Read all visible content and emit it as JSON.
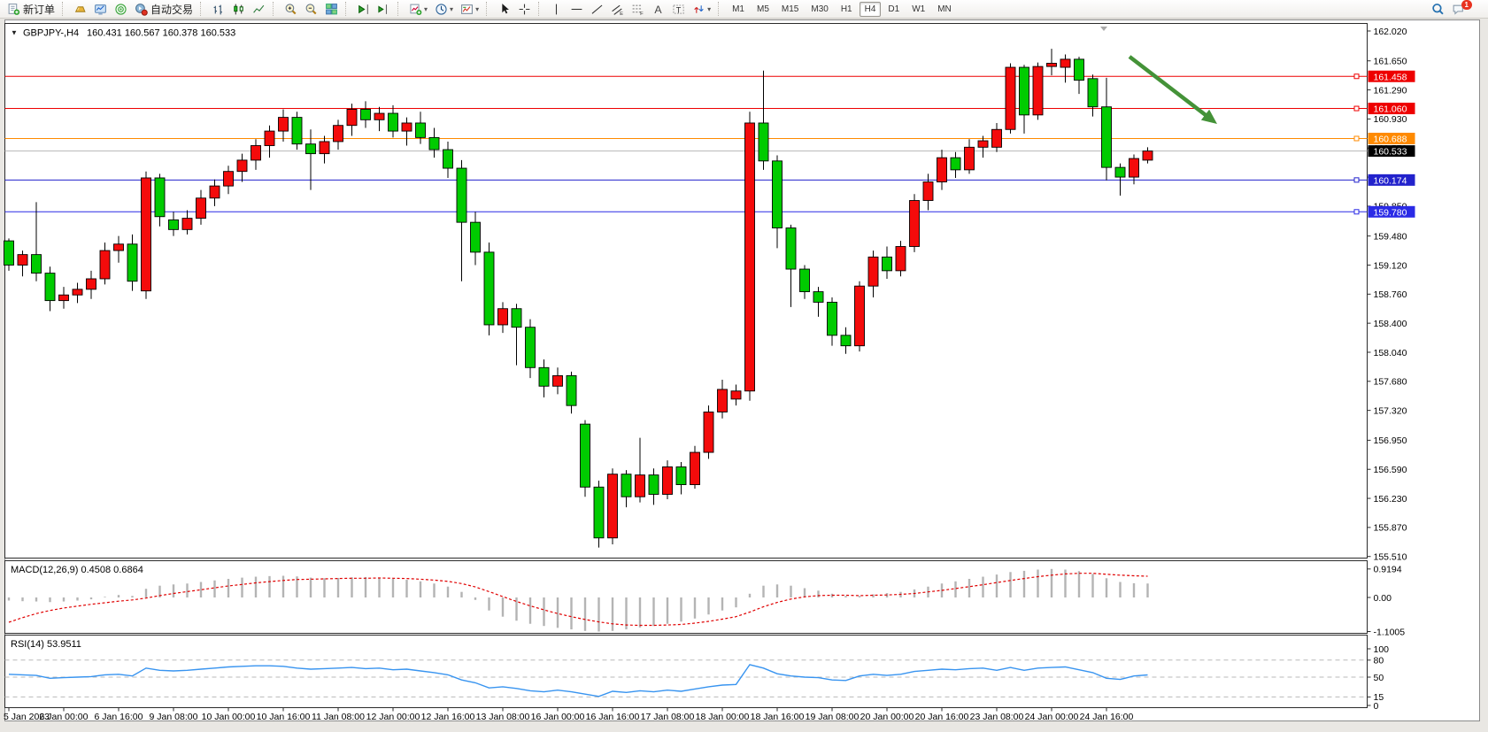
{
  "toolbar": {
    "groups": [
      {
        "items": [
          {
            "icon": "new-order-icon",
            "label": "新订单"
          }
        ]
      },
      {
        "items": [
          {
            "icon": "payment-icon"
          },
          {
            "icon": "terminal-icon"
          },
          {
            "icon": "signals-icon"
          },
          {
            "icon": "autotrade-icon",
            "label": "自动交易"
          }
        ]
      },
      {
        "items": [
          {
            "icon": "bar-chart-icon"
          },
          {
            "icon": "candlestick-chart-icon"
          },
          {
            "icon": "line-chart-icon"
          }
        ]
      },
      {
        "items": [
          {
            "icon": "zoom-in-icon"
          },
          {
            "icon": "zoom-out-icon"
          },
          {
            "icon": "tile-windows-icon"
          }
        ]
      },
      {
        "items": [
          {
            "icon": "auto-scroll-icon"
          },
          {
            "icon": "chart-shift-icon"
          }
        ]
      },
      {
        "items": [
          {
            "icon": "indicators-icon",
            "dropdown": true
          },
          {
            "icon": "periods-icon",
            "dropdown": true
          },
          {
            "icon": "templates-icon",
            "dropdown": true
          }
        ]
      },
      {
        "items": [
          {
            "icon": "cursor-icon"
          },
          {
            "icon": "crosshair-icon"
          }
        ]
      },
      {
        "items": [
          {
            "icon": "vertical-line-icon"
          },
          {
            "icon": "horizontal-line-icon"
          },
          {
            "icon": "trendline-icon"
          },
          {
            "icon": "equidistant-channel-icon"
          },
          {
            "icon": "fibonacci-icon"
          },
          {
            "icon": "text-icon"
          },
          {
            "icon": "text-label-icon"
          },
          {
            "icon": "arrows-icon",
            "dropdown": true
          }
        ]
      },
      {
        "type": "timeframes",
        "items": [
          {
            "label": "M1"
          },
          {
            "label": "M5"
          },
          {
            "label": "M15"
          },
          {
            "label": "M30"
          },
          {
            "label": "H1"
          },
          {
            "label": "H4",
            "active": true
          },
          {
            "label": "D1"
          },
          {
            "label": "W1"
          },
          {
            "label": "MN"
          }
        ]
      }
    ],
    "right": [
      {
        "icon": "search-icon"
      },
      {
        "icon": "chat-icon",
        "badge": "1"
      }
    ]
  },
  "chart": {
    "title_symbol": "GBPJPY-,H4",
    "title_ohlc": "160.431 160.567 160.378 160.533",
    "macd_label": "MACD(12,26,9) 0.4508 0.6864",
    "rsi_label": "RSI(14) 53.9511"
  },
  "chart_data": {
    "type": "candlestick",
    "symbol": "GBPJPY-",
    "period": "H4",
    "price_axis_ticks": [
      "162.020",
      "161.650",
      "161.290",
      "160.930",
      "160.570",
      "160.210",
      "159.850",
      "159.480",
      "159.120",
      "158.760",
      "158.400",
      "158.040",
      "157.680",
      "157.320",
      "156.950",
      "156.590",
      "156.230",
      "155.870",
      "155.510"
    ],
    "time_axis_ticks": [
      "5 Jan 2023",
      "6 Jan 00:00",
      "6 Jan 16:00",
      "9 Jan 08:00",
      "10 Jan 00:00",
      "10 Jan 16:00",
      "11 Jan 08:00",
      "12 Jan 00:00",
      "12 Jan 16:00",
      "13 Jan 08:00",
      "16 Jan 00:00",
      "16 Jan 16:00",
      "17 Jan 08:00",
      "18 Jan 00:00",
      "18 Jan 16:00",
      "19 Jan 08:00",
      "20 Jan 00:00",
      "20 Jan 16:00",
      "23 Jan 08:00",
      "24 Jan 00:00",
      "24 Jan 16:00"
    ],
    "hlines": [
      {
        "price": 161.458,
        "label": "161.458",
        "color": "#ee0000"
      },
      {
        "price": 161.06,
        "label": "161.060",
        "color": "#ee0000"
      },
      {
        "price": 160.688,
        "label": "160.688",
        "color": "#ff8a00"
      },
      {
        "price": 160.174,
        "label": "160.174",
        "color": "#2222cc"
      },
      {
        "price": 159.78,
        "label": "159.780",
        "color": "#2a2ae6"
      }
    ],
    "current_price": {
      "value": 160.533,
      "label": "160.533",
      "line_color": "#b8b8b8",
      "box_color": "#000000"
    },
    "colors": {
      "bull": "#f40b0b",
      "bear": "#00cb00",
      "outline": "#000000",
      "macd_hist": "#b4b4b4",
      "macd_signal": "#e00000",
      "rsi_line": "#3894f0",
      "arrow": "#449238"
    },
    "candles": [
      [
        159.42,
        159.45,
        159.05,
        159.12
      ],
      [
        159.12,
        159.3,
        158.98,
        159.25
      ],
      [
        159.25,
        159.9,
        158.92,
        159.02
      ],
      [
        159.02,
        159.1,
        158.55,
        158.68
      ],
      [
        158.68,
        158.85,
        158.58,
        158.75
      ],
      [
        158.75,
        158.9,
        158.65,
        158.82
      ],
      [
        158.82,
        159.05,
        158.7,
        158.95
      ],
      [
        158.95,
        159.4,
        158.88,
        159.3
      ],
      [
        159.3,
        159.48,
        159.15,
        159.38
      ],
      [
        159.38,
        159.5,
        158.8,
        158.92
      ],
      [
        158.8,
        160.28,
        158.7,
        160.2
      ],
      [
        160.2,
        160.25,
        159.6,
        159.72
      ],
      [
        159.68,
        159.78,
        159.48,
        159.56
      ],
      [
        159.56,
        159.8,
        159.5,
        159.7
      ],
      [
        159.7,
        160.05,
        159.62,
        159.95
      ],
      [
        159.95,
        160.18,
        159.85,
        160.1
      ],
      [
        160.1,
        160.35,
        160.0,
        160.28
      ],
      [
        160.28,
        160.5,
        160.15,
        160.42
      ],
      [
        160.42,
        160.68,
        160.3,
        160.6
      ],
      [
        160.6,
        160.85,
        160.45,
        160.78
      ],
      [
        160.78,
        161.05,
        160.65,
        160.95
      ],
      [
        160.95,
        161.02,
        160.55,
        160.62
      ],
      [
        160.62,
        160.8,
        160.05,
        160.5
      ],
      [
        160.5,
        160.72,
        160.38,
        160.65
      ],
      [
        160.65,
        160.92,
        160.55,
        160.85
      ],
      [
        160.85,
        161.12,
        160.72,
        161.05
      ],
      [
        161.05,
        161.15,
        160.82,
        160.92
      ],
      [
        160.92,
        161.08,
        160.78,
        161.0
      ],
      [
        161.0,
        161.1,
        160.7,
        160.78
      ],
      [
        160.78,
        160.95,
        160.6,
        160.88
      ],
      [
        160.88,
        161.02,
        160.62,
        160.7
      ],
      [
        160.7,
        160.82,
        160.45,
        160.55
      ],
      [
        160.55,
        160.65,
        160.2,
        160.32
      ],
      [
        160.32,
        160.42,
        158.92,
        159.65
      ],
      [
        159.65,
        159.78,
        159.12,
        159.28
      ],
      [
        159.28,
        159.4,
        158.25,
        158.38
      ],
      [
        158.38,
        158.66,
        158.28,
        158.58
      ],
      [
        158.58,
        158.64,
        157.88,
        158.35
      ],
      [
        158.35,
        158.45,
        157.72,
        157.85
      ],
      [
        157.85,
        157.95,
        157.48,
        157.62
      ],
      [
        157.62,
        157.85,
        157.52,
        157.75
      ],
      [
        157.75,
        157.8,
        157.28,
        157.38
      ],
      [
        157.15,
        157.2,
        156.25,
        156.37
      ],
      [
        156.37,
        156.45,
        155.62,
        155.74
      ],
      [
        155.74,
        156.6,
        155.66,
        156.53
      ],
      [
        156.53,
        156.58,
        156.12,
        156.25
      ],
      [
        156.25,
        156.98,
        156.18,
        156.52
      ],
      [
        156.52,
        156.6,
        156.15,
        156.28
      ],
      [
        156.28,
        156.7,
        156.22,
        156.62
      ],
      [
        156.62,
        156.68,
        156.28,
        156.4
      ],
      [
        156.4,
        156.88,
        156.35,
        156.8
      ],
      [
        156.8,
        157.38,
        156.72,
        157.3
      ],
      [
        157.3,
        157.7,
        157.22,
        157.58
      ],
      [
        157.46,
        157.64,
        157.38,
        157.56
      ],
      [
        157.56,
        161.02,
        157.44,
        160.88
      ],
      [
        160.88,
        161.53,
        160.3,
        160.41
      ],
      [
        160.41,
        160.48,
        159.33,
        159.58
      ],
      [
        159.58,
        159.62,
        158.6,
        159.07
      ],
      [
        159.07,
        159.12,
        158.7,
        158.79
      ],
      [
        158.79,
        158.85,
        158.48,
        158.66
      ],
      [
        158.66,
        158.72,
        158.12,
        158.25
      ],
      [
        158.25,
        158.35,
        158.02,
        158.12
      ],
      [
        158.12,
        158.92,
        158.05,
        158.86
      ],
      [
        158.86,
        159.3,
        158.72,
        159.22
      ],
      [
        159.22,
        159.35,
        158.95,
        159.05
      ],
      [
        159.05,
        159.42,
        158.98,
        159.35
      ],
      [
        159.35,
        160.0,
        159.28,
        159.92
      ],
      [
        159.92,
        160.25,
        159.8,
        160.15
      ],
      [
        160.15,
        160.55,
        160.05,
        160.45
      ],
      [
        160.45,
        160.52,
        160.2,
        160.3
      ],
      [
        160.3,
        160.68,
        160.25,
        160.58
      ],
      [
        160.58,
        160.72,
        160.45,
        160.66
      ],
      [
        160.58,
        160.88,
        160.52,
        160.8
      ],
      [
        160.8,
        161.62,
        160.75,
        161.57
      ],
      [
        161.57,
        161.6,
        160.75,
        160.98
      ],
      [
        160.98,
        161.63,
        160.92,
        161.58
      ],
      [
        161.58,
        161.8,
        161.47,
        161.62
      ],
      [
        161.57,
        161.73,
        161.38,
        161.67
      ],
      [
        161.67,
        161.7,
        161.24,
        161.41
      ],
      [
        161.43,
        161.48,
        160.96,
        161.08
      ],
      [
        161.08,
        161.44,
        160.17,
        160.33
      ],
      [
        160.33,
        160.38,
        159.98,
        160.21
      ],
      [
        160.21,
        160.49,
        160.12,
        160.44
      ],
      [
        160.42,
        160.58,
        160.38,
        160.533
      ]
    ],
    "indicators": {
      "macd": {
        "label": "MACD(12,26,9) 0.4508 0.6864",
        "axis_ticks": [
          "0.9194",
          "0.00",
          "-1.1005"
        ],
        "histogram": [
          -0.1,
          -0.12,
          -0.13,
          -0.15,
          -0.13,
          -0.1,
          -0.06,
          0.02,
          0.08,
          0.05,
          0.28,
          0.38,
          0.42,
          0.45,
          0.5,
          0.55,
          0.6,
          0.64,
          0.67,
          0.69,
          0.7,
          0.68,
          0.64,
          0.62,
          0.63,
          0.65,
          0.66,
          0.64,
          0.6,
          0.57,
          0.52,
          0.45,
          0.35,
          0.18,
          -0.08,
          -0.42,
          -0.62,
          -0.75,
          -0.85,
          -0.92,
          -0.98,
          -1.03,
          -1.08,
          -1.1,
          -1.08,
          -1.03,
          -0.97,
          -0.92,
          -0.85,
          -0.78,
          -0.68,
          -0.55,
          -0.42,
          -0.32,
          0.12,
          0.38,
          0.42,
          0.38,
          0.3,
          0.22,
          0.12,
          0.05,
          0.05,
          0.1,
          0.14,
          0.18,
          0.26,
          0.35,
          0.45,
          0.52,
          0.6,
          0.67,
          0.74,
          0.82,
          0.86,
          0.9,
          0.92,
          0.9,
          0.85,
          0.76,
          0.62,
          0.5,
          0.46,
          0.4508
        ],
        "signal": [
          -0.8,
          -0.65,
          -0.52,
          -0.42,
          -0.34,
          -0.28,
          -0.22,
          -0.17,
          -0.12,
          -0.08,
          -0.02,
          0.06,
          0.13,
          0.19,
          0.25,
          0.31,
          0.37,
          0.42,
          0.47,
          0.51,
          0.55,
          0.58,
          0.59,
          0.6,
          0.61,
          0.62,
          0.62,
          0.63,
          0.62,
          0.61,
          0.59,
          0.56,
          0.52,
          0.45,
          0.34,
          0.19,
          0.03,
          -0.13,
          -0.27,
          -0.4,
          -0.52,
          -0.62,
          -0.71,
          -0.79,
          -0.85,
          -0.89,
          -0.9,
          -0.9,
          -0.89,
          -0.87,
          -0.83,
          -0.77,
          -0.7,
          -0.62,
          -0.47,
          -0.3,
          -0.16,
          -0.05,
          0.02,
          0.06,
          0.07,
          0.07,
          0.06,
          0.07,
          0.08,
          0.1,
          0.13,
          0.18,
          0.23,
          0.29,
          0.35,
          0.41,
          0.48,
          0.55,
          0.61,
          0.67,
          0.72,
          0.76,
          0.78,
          0.78,
          0.75,
          0.72,
          0.7,
          0.6864
        ]
      },
      "rsi": {
        "label": "RSI(14) 53.9511",
        "axis_ticks": [
          "100",
          "80",
          "50",
          "15",
          "0"
        ],
        "levels": [
          80,
          50,
          15
        ],
        "values": [
          55,
          54,
          53,
          48,
          49,
          50,
          51,
          54,
          55,
          52,
          66,
          62,
          61,
          62,
          64,
          66,
          68,
          69,
          70,
          70,
          69,
          66,
          64,
          65,
          66,
          67,
          65,
          66,
          63,
          64,
          61,
          58,
          54,
          45,
          40,
          31,
          33,
          30,
          26,
          24,
          27,
          24,
          20,
          16,
          25,
          23,
          26,
          24,
          27,
          25,
          29,
          33,
          36,
          37,
          72,
          66,
          56,
          52,
          50,
          49,
          45,
          44,
          52,
          55,
          53,
          55,
          60,
          62,
          64,
          63,
          65,
          66,
          62,
          67,
          62,
          66,
          67,
          68,
          63,
          58,
          48,
          46,
          52,
          53.9511
        ]
      }
    },
    "annotations": [
      {
        "type": "arrow",
        "from": [
          1276,
          42
        ],
        "to": [
          1375,
          118
        ],
        "color": "#449238"
      }
    ]
  }
}
